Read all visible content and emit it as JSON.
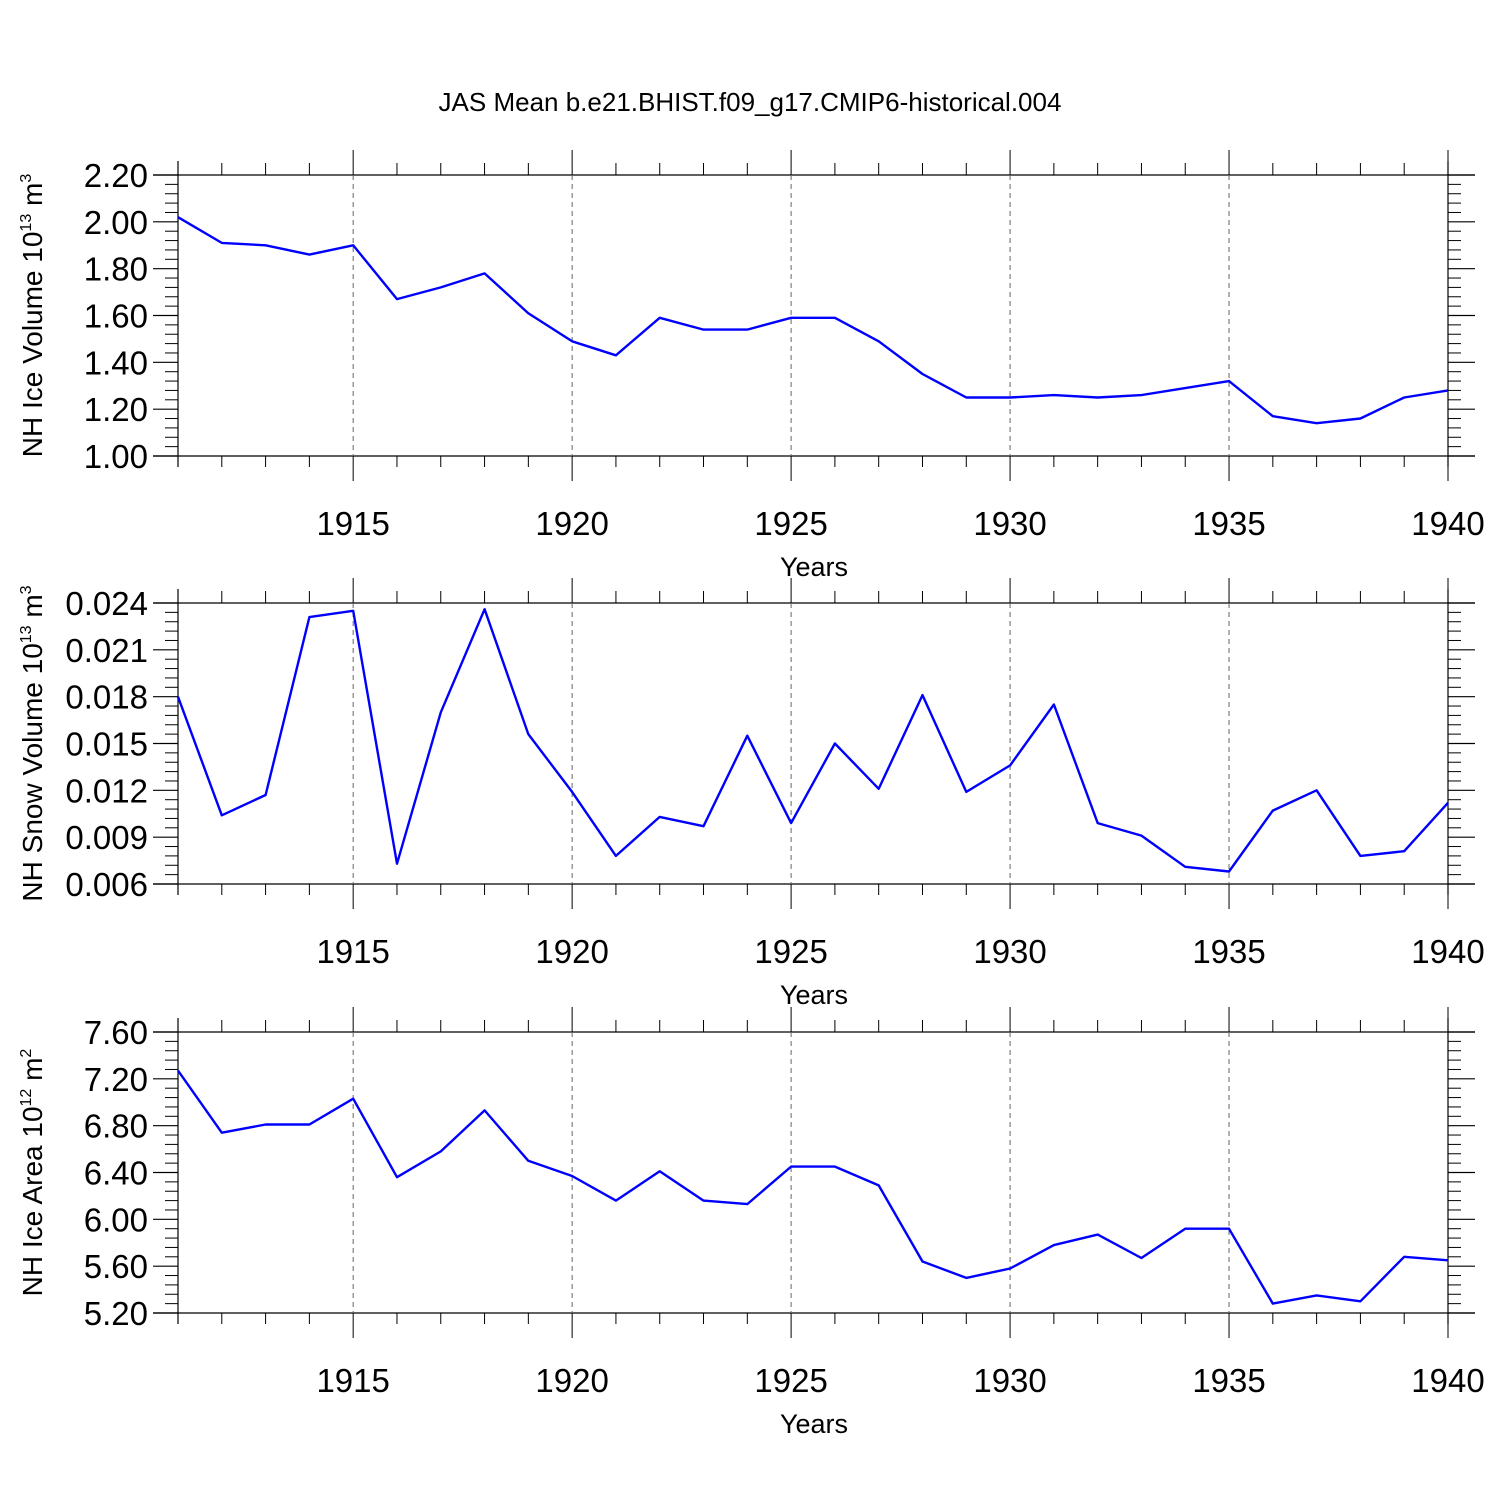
{
  "title": "JAS Mean b.e21.BHIST.f09_g17.CMIP6-historical.004",
  "colors": {
    "line": "#0000ff",
    "axis": "#000000",
    "grid": "#666666"
  },
  "chart_data": [
    {
      "type": "line",
      "ylabel": {
        "prefix": "NH Ice Volume 10",
        "exp": "13",
        "unit": " m",
        "unit_exp": "3"
      },
      "xlabel": "Years",
      "xlim": [
        1911,
        1940
      ],
      "ylim": [
        1.0,
        2.2
      ],
      "yticks": [
        "1.00",
        "1.20",
        "1.40",
        "1.60",
        "1.80",
        "2.00",
        "2.20"
      ],
      "xticks": [
        "1915",
        "1920",
        "1925",
        "1930",
        "1935",
        "1940"
      ],
      "x": [
        1911,
        1912,
        1913,
        1914,
        1915,
        1916,
        1917,
        1918,
        1919,
        1920,
        1921,
        1922,
        1923,
        1924,
        1925,
        1926,
        1927,
        1928,
        1929,
        1930,
        1931,
        1932,
        1933,
        1934,
        1935,
        1936,
        1937,
        1938,
        1939,
        1940
      ],
      "values": [
        2.02,
        1.91,
        1.9,
        1.86,
        1.9,
        1.67,
        1.72,
        1.78,
        1.61,
        1.49,
        1.43,
        1.59,
        1.54,
        1.54,
        1.59,
        1.59,
        1.49,
        1.35,
        1.25,
        1.25,
        1.26,
        1.25,
        1.26,
        1.29,
        1.32,
        1.17,
        1.14,
        1.16,
        1.25,
        1.28
      ]
    },
    {
      "type": "line",
      "ylabel": {
        "prefix": "NH Snow Volume 10",
        "exp": "13",
        "unit": " m",
        "unit_exp": "3"
      },
      "xlabel": "Years",
      "xlim": [
        1911,
        1940
      ],
      "ylim": [
        0.006,
        0.024
      ],
      "yticks": [
        "0.006",
        "0.009",
        "0.012",
        "0.015",
        "0.018",
        "0.021",
        "0.024"
      ],
      "xticks": [
        "1915",
        "1920",
        "1925",
        "1930",
        "1935",
        "1940"
      ],
      "x": [
        1911,
        1912,
        1913,
        1914,
        1915,
        1916,
        1917,
        1918,
        1919,
        1920,
        1921,
        1922,
        1923,
        1924,
        1925,
        1926,
        1927,
        1928,
        1929,
        1930,
        1931,
        1932,
        1933,
        1934,
        1935,
        1936,
        1937,
        1938,
        1939,
        1940
      ],
      "values": [
        0.018,
        0.0104,
        0.0117,
        0.0231,
        0.0235,
        0.0073,
        0.017,
        0.0236,
        0.0156,
        0.0119,
        0.0078,
        0.0103,
        0.0097,
        0.0155,
        0.0099,
        0.015,
        0.0121,
        0.0181,
        0.0119,
        0.0136,
        0.0175,
        0.0099,
        0.0091,
        0.0071,
        0.0068,
        0.0107,
        0.012,
        0.0078,
        0.0081,
        0.0112
      ]
    },
    {
      "type": "line",
      "ylabel": {
        "prefix": "NH Ice Area 10",
        "exp": "12",
        "unit": " m",
        "unit_exp": "2"
      },
      "xlabel": "Years",
      "xlim": [
        1911,
        1940
      ],
      "ylim": [
        5.2,
        7.6
      ],
      "yticks": [
        "5.20",
        "5.60",
        "6.00",
        "6.40",
        "6.80",
        "7.20",
        "7.60"
      ],
      "xticks": [
        "1915",
        "1920",
        "1925",
        "1930",
        "1935",
        "1940"
      ],
      "x": [
        1911,
        1912,
        1913,
        1914,
        1915,
        1916,
        1917,
        1918,
        1919,
        1920,
        1921,
        1922,
        1923,
        1924,
        1925,
        1926,
        1927,
        1928,
        1929,
        1930,
        1931,
        1932,
        1933,
        1934,
        1935,
        1936,
        1937,
        1938,
        1939,
        1940
      ],
      "values": [
        7.27,
        6.74,
        6.81,
        6.81,
        7.03,
        6.36,
        6.58,
        6.93,
        6.5,
        6.37,
        6.16,
        6.41,
        6.16,
        6.13,
        6.45,
        6.45,
        6.29,
        5.64,
        5.5,
        5.58,
        5.78,
        5.87,
        5.67,
        5.92,
        5.92,
        5.28,
        5.35,
        5.3,
        5.68,
        5.65
      ]
    }
  ]
}
